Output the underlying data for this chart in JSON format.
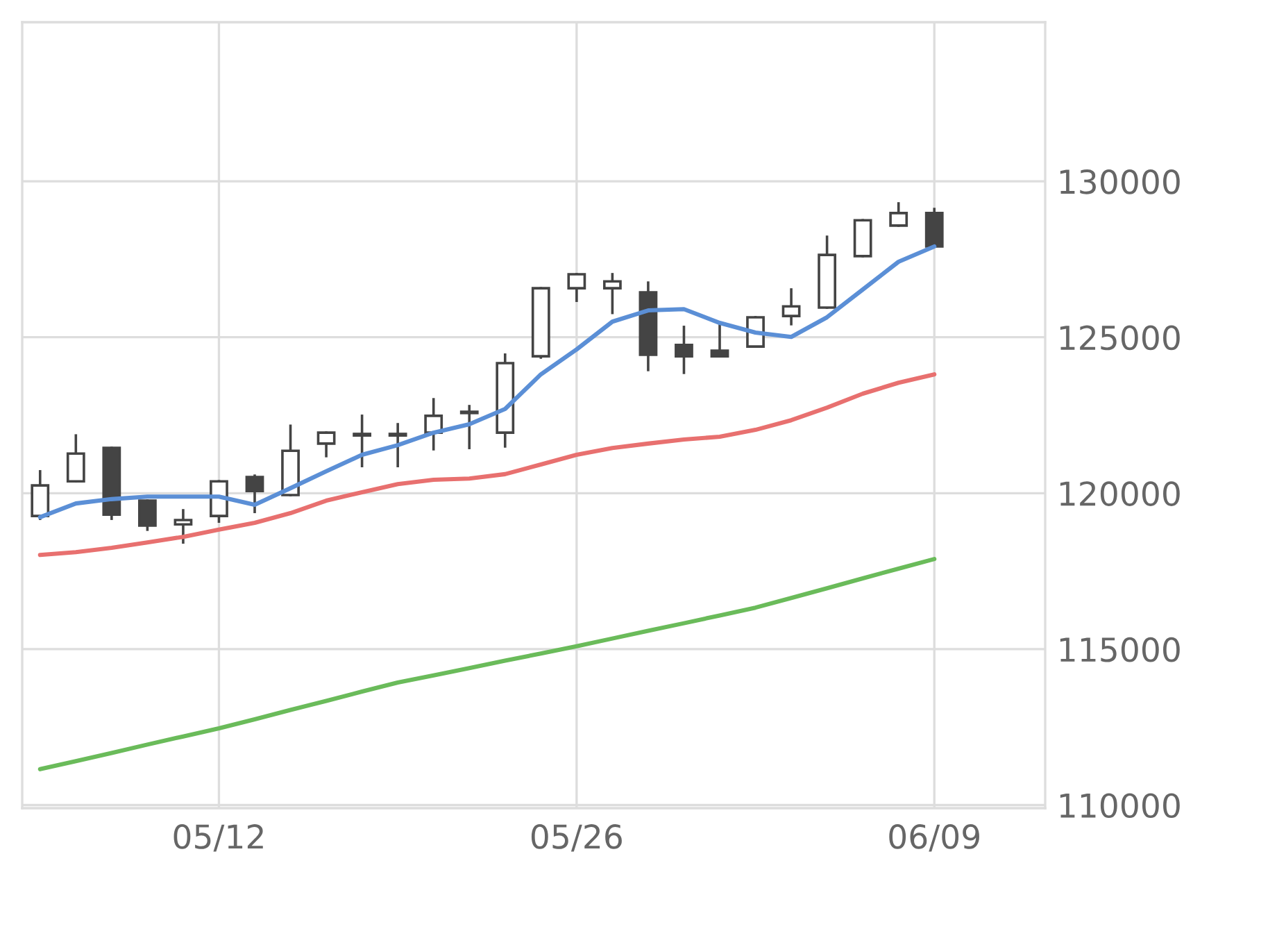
{
  "chart_data": {
    "type": "candlestick",
    "categories": [
      null,
      null,
      null,
      null,
      null,
      "05/12",
      null,
      null,
      null,
      null,
      null,
      null,
      null,
      null,
      null,
      "05/26",
      null,
      null,
      null,
      null,
      null,
      null,
      null,
      null,
      null,
      "06/09"
    ],
    "ohlc": [
      [
        119270,
        120700,
        119180,
        120250
      ],
      [
        120380,
        121850,
        120380,
        121270
      ],
      [
        121450,
        121450,
        119180,
        119310
      ],
      [
        119760,
        119760,
        118830,
        118960
      ],
      [
        119000,
        119450,
        118420,
        119140
      ],
      [
        119270,
        120380,
        119090,
        120380
      ],
      [
        120520,
        120560,
        119400,
        120070
      ],
      [
        119940,
        122160,
        119940,
        121360
      ],
      [
        121590,
        121940,
        121190,
        121940
      ],
      [
        121850,
        122480,
        120870,
        121900
      ],
      [
        121900,
        122210,
        120870,
        121850
      ],
      [
        121940,
        123010,
        121410,
        122480
      ],
      [
        122570,
        122790,
        121450,
        122610
      ],
      [
        121940,
        124440,
        121500,
        124170
      ],
      [
        124390,
        126570,
        124350,
        126570
      ],
      [
        126570,
        127020,
        126170,
        127020
      ],
      [
        126570,
        127020,
        125780,
        126790
      ],
      [
        126440,
        126750,
        123950,
        124440
      ],
      [
        124750,
        125330,
        123860,
        124390
      ],
      [
        124570,
        125420,
        124390,
        124390
      ],
      [
        124700,
        125640,
        124700,
        125640
      ],
      [
        125680,
        126530,
        125420,
        125990
      ],
      [
        125950,
        128220,
        125950,
        127640
      ],
      [
        127600,
        128750,
        127600,
        128750
      ],
      [
        128580,
        129290,
        128580,
        128980
      ],
      [
        128980,
        129110,
        127910,
        127910
      ]
    ],
    "series": [
      {
        "type": "line",
        "color": "#5b8fd6",
        "values": [
          119230,
          119670,
          119810,
          119890,
          119890,
          119890,
          119630,
          120160,
          120700,
          121230,
          121540,
          121940,
          122210,
          122700,
          123810,
          124610,
          125500,
          125860,
          125900,
          125460,
          125150,
          125010,
          125640,
          126530,
          127420,
          127910
        ]
      },
      {
        "type": "line",
        "color": "#e8706f",
        "values": [
          118020,
          118110,
          118250,
          118420,
          118600,
          118830,
          119050,
          119360,
          119760,
          120030,
          120290,
          120430,
          120470,
          120610,
          120920,
          121230,
          121450,
          121590,
          121720,
          121810,
          122030,
          122340,
          122740,
          123190,
          123540,
          123810
        ]
      },
      {
        "type": "line",
        "color": "#6abb5a",
        "values": [
          111150,
          111410,
          111670,
          111940,
          112200,
          112460,
          112750,
          113050,
          113340,
          113640,
          113930,
          114160,
          114390,
          114630,
          114860,
          115090,
          115340,
          115590,
          115830,
          116080,
          116330,
          116640,
          116950,
          117270,
          117580,
          117890
        ]
      }
    ],
    "ylim": [
      109900,
      135100
    ],
    "yticks": [
      110000,
      115000,
      120000,
      125000,
      130000
    ],
    "grid": true
  }
}
